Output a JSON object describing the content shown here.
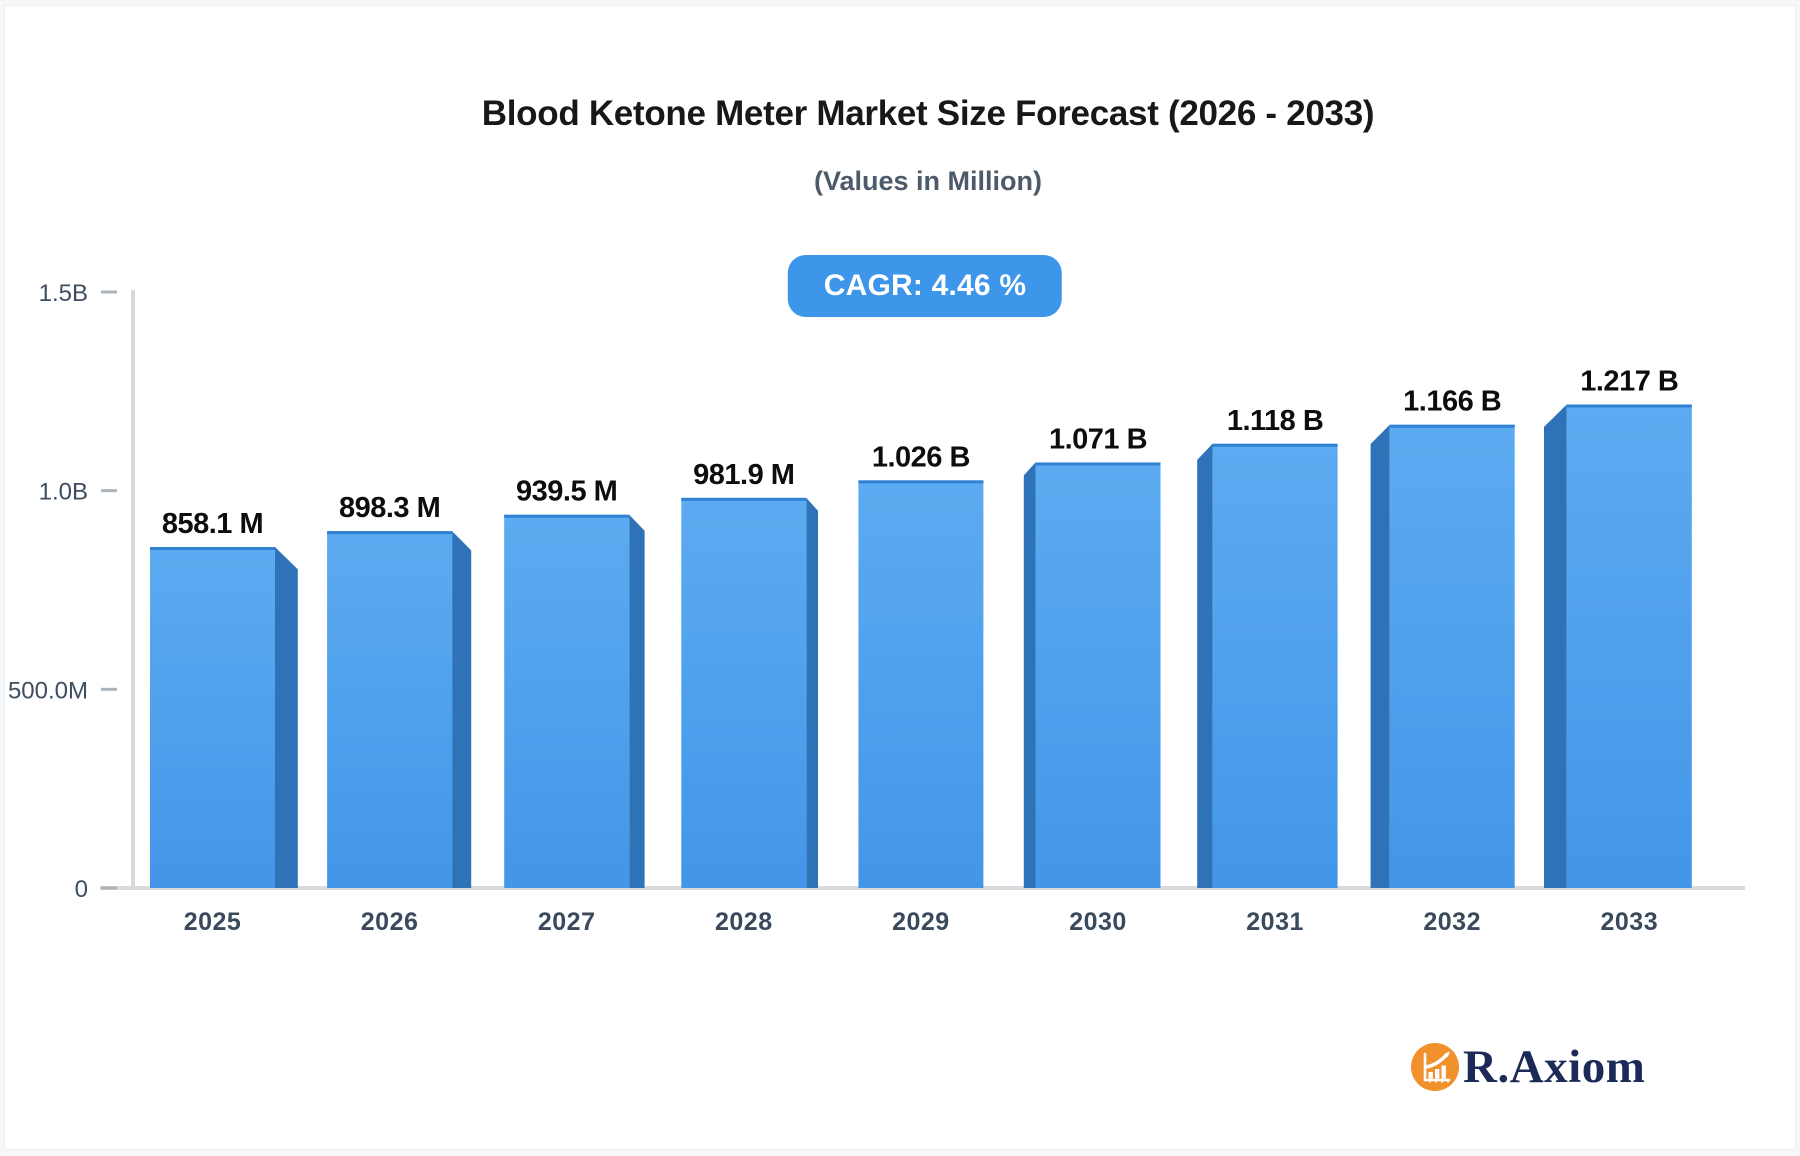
{
  "header": {
    "title": "Blood Ketone Meter Market Size Forecast (2026 - 2033)",
    "subtitle": "(Values in Million)",
    "cagr_badge": "CAGR: 4.46 %"
  },
  "chart_data": {
    "type": "bar",
    "title": "Blood Ketone Meter Market Size Forecast (2026 - 2033)",
    "subtitle": "(Values in Million)",
    "cagr_percent": 4.46,
    "categories": [
      "2025",
      "2026",
      "2027",
      "2028",
      "2029",
      "2030",
      "2031",
      "2032",
      "2033"
    ],
    "values_millions": [
      858.1,
      898.3,
      939.5,
      981.9,
      1026,
      1071,
      1118,
      1166,
      1217
    ],
    "bar_labels": [
      "858.1 M",
      "898.3 M",
      "939.5 M",
      "981.9 M",
      "1.026 B",
      "1.071 B",
      "1.118 B",
      "1.166 B",
      "1.217 B"
    ],
    "xlabel": "",
    "ylabel": "",
    "ylim_millions": [
      0,
      1500
    ],
    "y_axis_ticks": [
      {
        "value_millions": 0,
        "label": "0"
      },
      {
        "value_millions": 500,
        "label": "500.0M"
      },
      {
        "value_millions": 1000,
        "label": "1.0B"
      },
      {
        "value_millions": 1500,
        "label": "1.5B"
      }
    ],
    "grid": false,
    "legend": false,
    "style": "pseudo-3d-perspective-bars",
    "colors": {
      "bar_face_top": "#5cabf1",
      "bar_face_bottom": "#4396e8",
      "bar_top_edge": "#3181d3",
      "bar_side": "#2e73b8",
      "axis_line": "#d8dbde",
      "tick_mark": "#aab2ba",
      "tick_label": "#3f4e5e",
      "category_label": "#3a4a5c",
      "value_label": "#0c0d0e",
      "badge_background": "#3d96ea",
      "badge_text": "#ffffff"
    }
  },
  "logo": {
    "text": "R.Axiom",
    "icon": "bar-chart-growth-icon",
    "circle_color": "#f0912c",
    "icon_color": "#ffffff",
    "text_color": "#1c2a58"
  }
}
